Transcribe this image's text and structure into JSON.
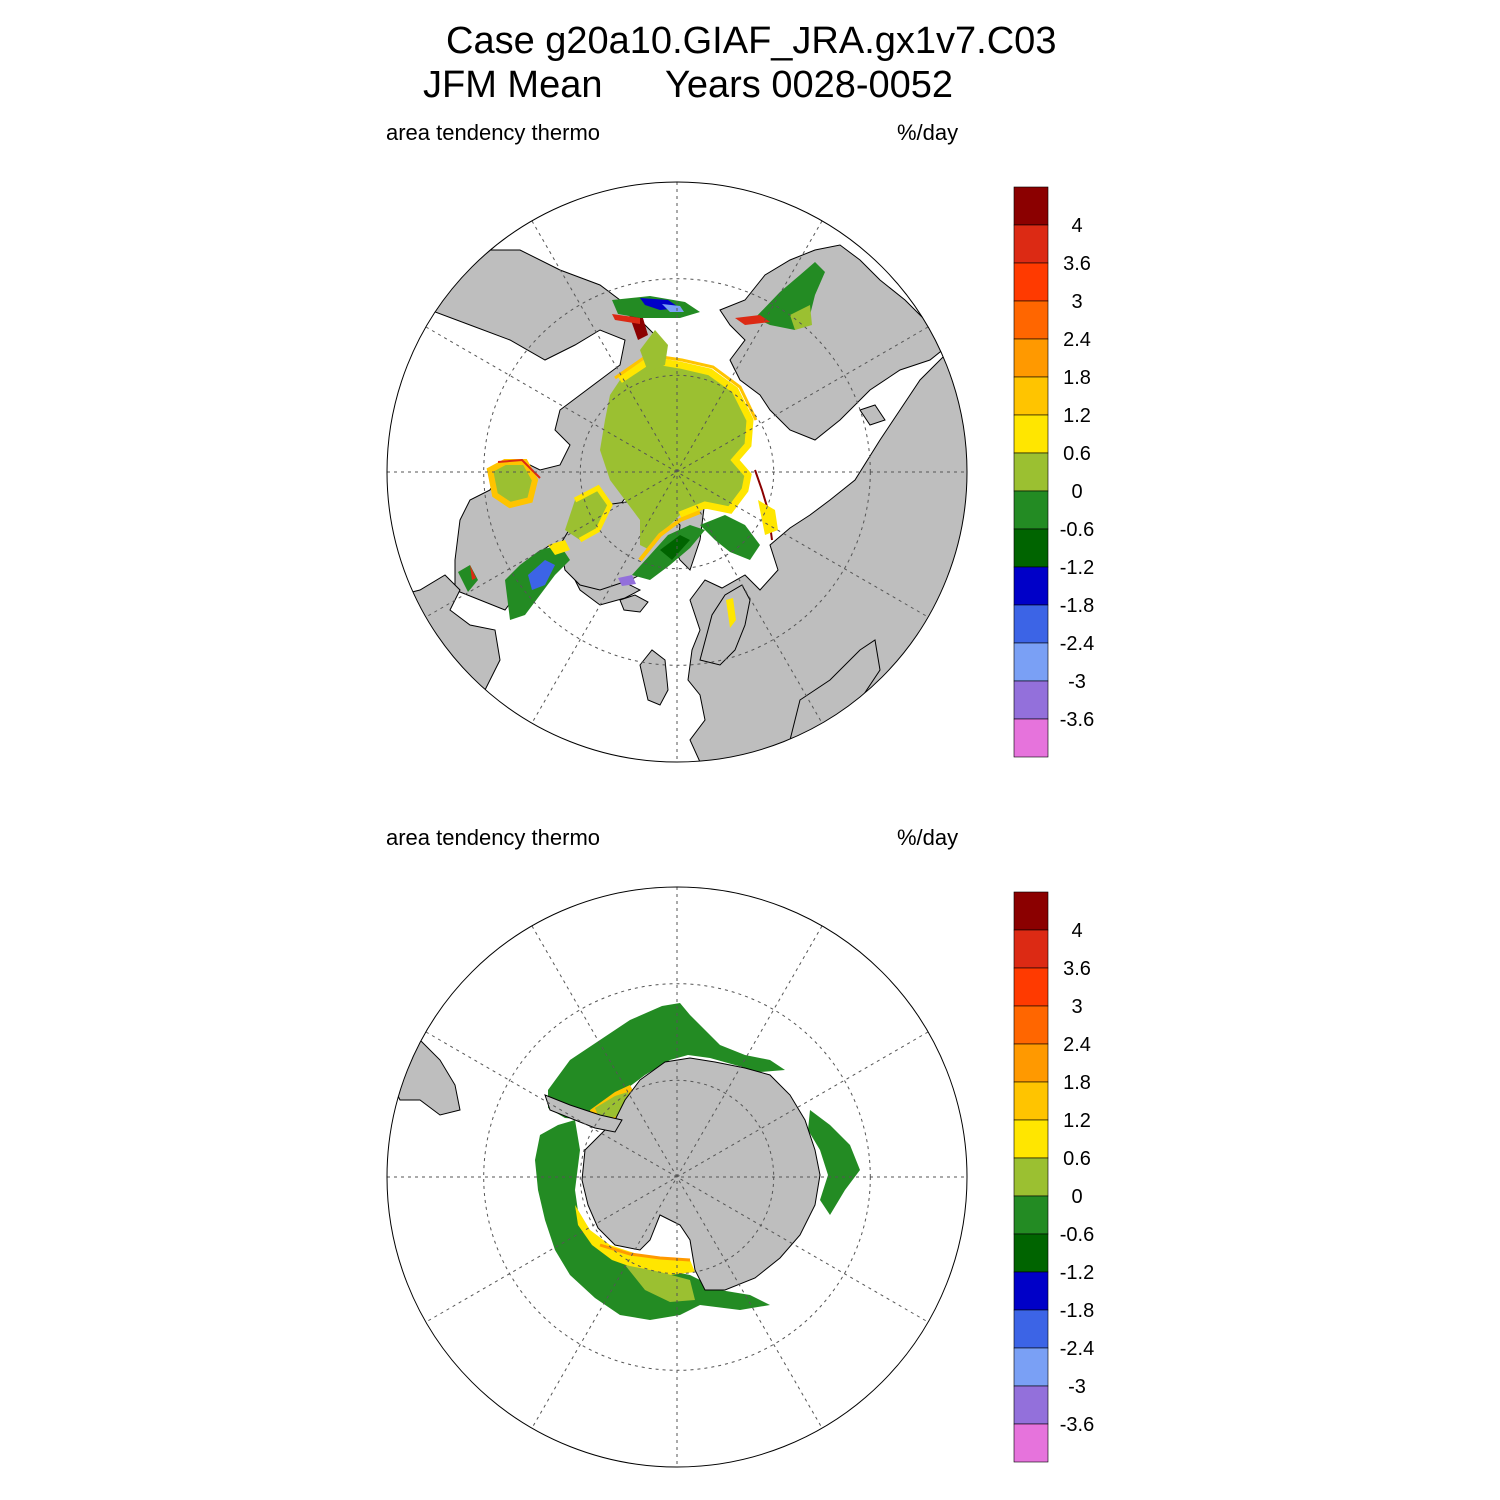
{
  "header": {
    "title": "Case g20a10.GIAF_JRA.gx1v7.C03",
    "period": "JFM Mean",
    "years": "Years 0028-0052"
  },
  "panels": [
    {
      "variable": "area tendency thermo",
      "units": "%/day",
      "hemisphere": "north"
    },
    {
      "variable": "area tendency thermo",
      "units": "%/day",
      "hemisphere": "south"
    }
  ],
  "colorbar": {
    "labels": [
      "4",
      "3.6",
      "3",
      "2.4",
      "1.8",
      "1.2",
      "0.6",
      "0",
      "-0.6",
      "-1.2",
      "-1.8",
      "-2.4",
      "-3",
      "-3.6"
    ],
    "colors": [
      "#8b0000",
      "#dc2a14",
      "#ff3a00",
      "#ff6600",
      "#ff9900",
      "#ffc400",
      "#ffe600",
      "#9bc031",
      "#238b23",
      "#006400",
      "#0000c8",
      "#3c64e6",
      "#7aa0f5",
      "#9370db",
      "#e673dc"
    ]
  },
  "map_colors": {
    "land": "#bebebe",
    "ocean": "#ffffff",
    "gridline": "#555555",
    "outline": "#000000"
  }
}
